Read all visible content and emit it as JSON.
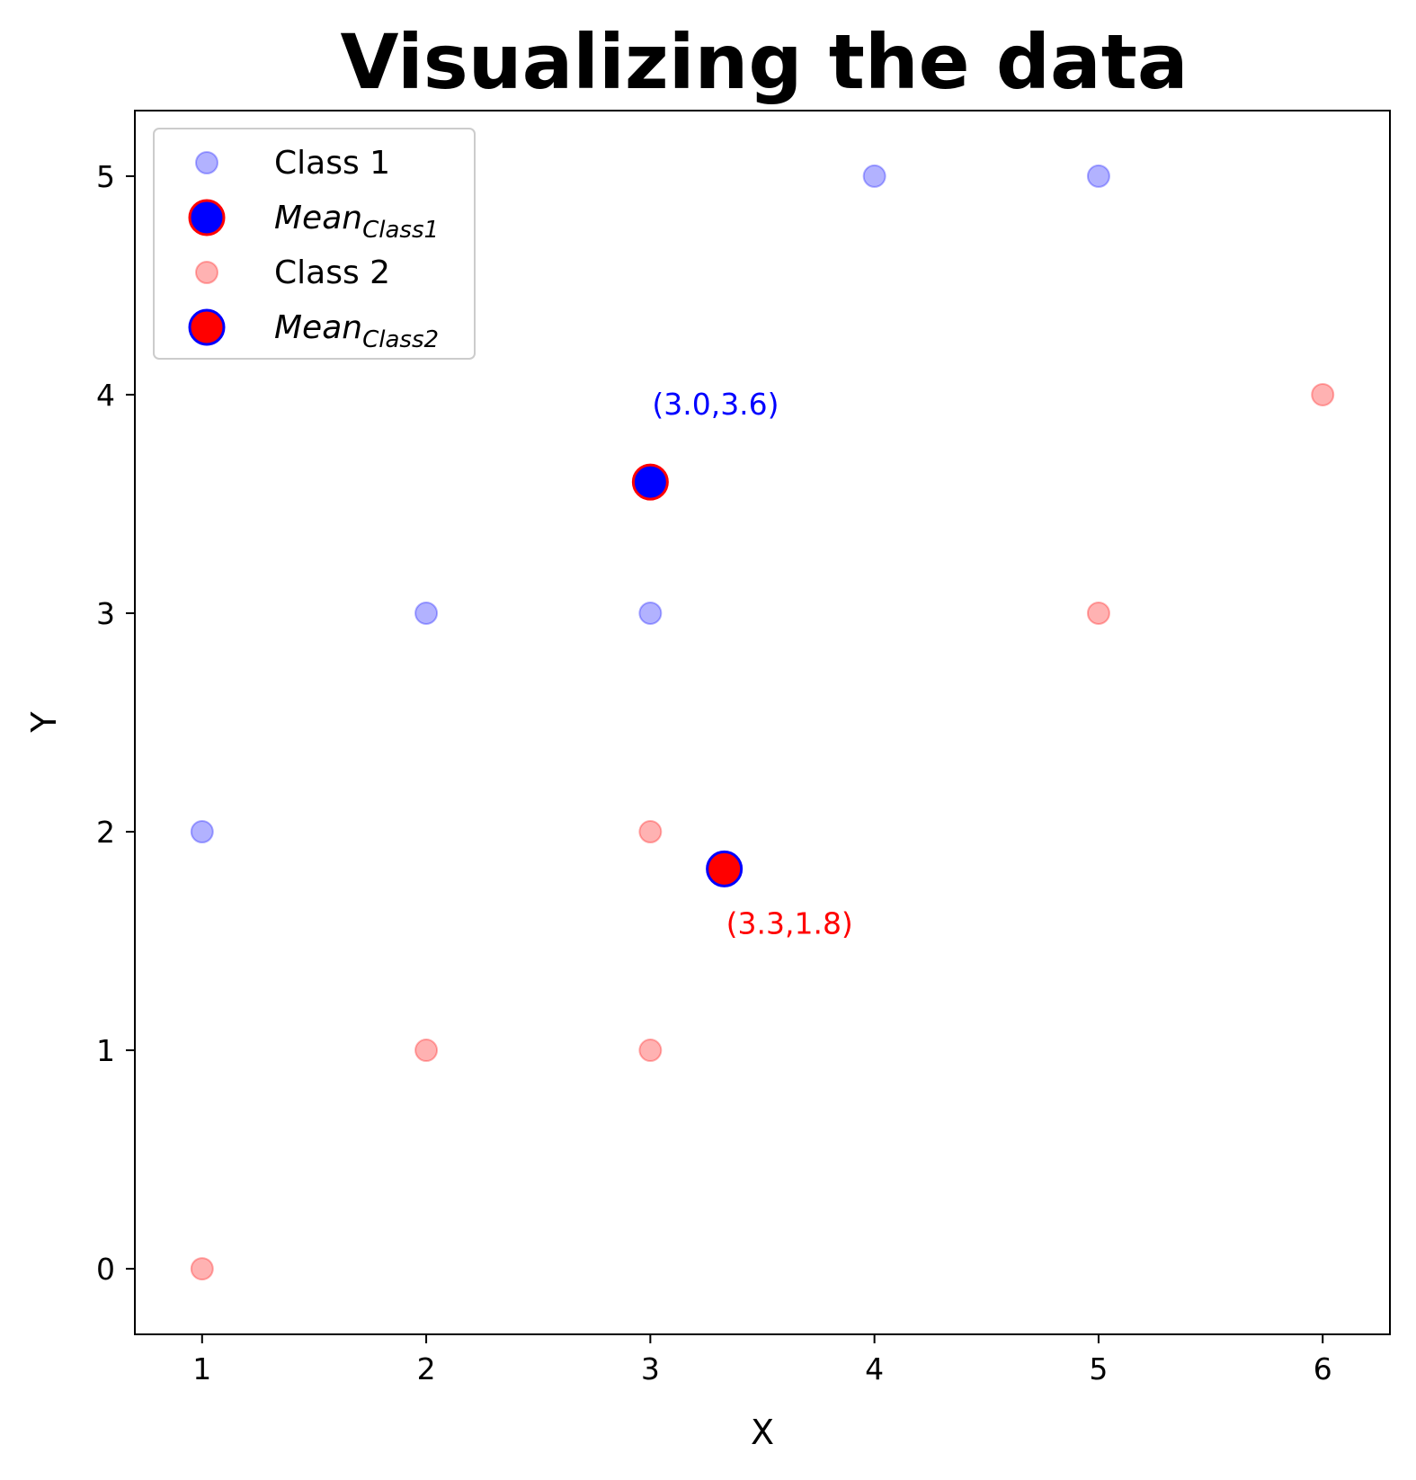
{
  "chart_data": {
    "type": "scatter",
    "title": "Visualizing the data",
    "xlabel": "X",
    "ylabel": "Y",
    "xlim": [
      0.7,
      6.3
    ],
    "ylim": [
      -0.3,
      5.3
    ],
    "xticks": [
      1,
      2,
      3,
      4,
      5,
      6
    ],
    "yticks": [
      0,
      1,
      2,
      3,
      4,
      5
    ],
    "grid": false,
    "legend_position": "top-left",
    "series": [
      {
        "name": "Class 1",
        "kind": "points",
        "fill": "#0000ff",
        "points": [
          [
            1,
            2
          ],
          [
            2,
            3
          ],
          [
            3,
            3
          ],
          [
            4,
            5
          ],
          [
            5,
            5
          ]
        ]
      },
      {
        "name": "Class 2",
        "kind": "points",
        "fill": "#ff0000",
        "points": [
          [
            1,
            0
          ],
          [
            2,
            1
          ],
          [
            3,
            1
          ],
          [
            3,
            2
          ],
          [
            5,
            3
          ],
          [
            6,
            4
          ]
        ]
      },
      {
        "name": "Mean",
        "name_sub": "Class1",
        "kind": "mean",
        "fill": "#0000ff",
        "stroke": "#ff0000",
        "points": [
          [
            3.0,
            3.6
          ]
        ],
        "annotation": "(3.0,3.6)",
        "annotation_color": "#0000ff"
      },
      {
        "name": "Mean",
        "name_sub": "Class2",
        "kind": "mean",
        "fill": "#ff0000",
        "stroke": "#0000ff",
        "points": [
          [
            3.33,
            1.83
          ]
        ],
        "annotation": "(3.3,1.8)",
        "annotation_color": "#ff0000"
      }
    ],
    "legend_order": [
      0,
      2,
      1,
      3
    ]
  }
}
